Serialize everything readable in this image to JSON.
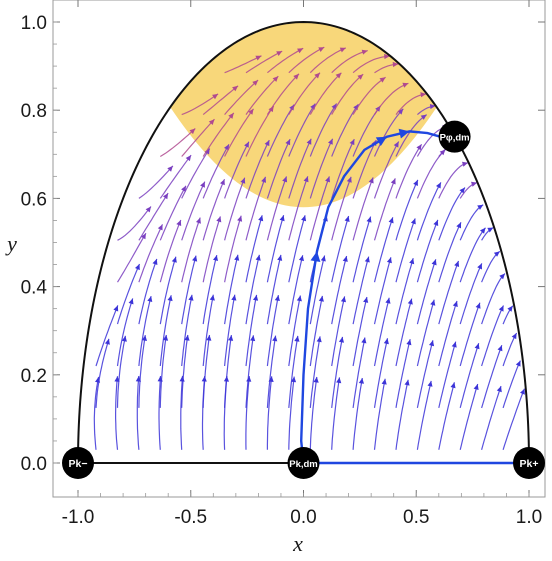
{
  "chart_data": {
    "type": "streamplot",
    "title": "",
    "xlabel": "x",
    "ylabel": "y",
    "xlim": [
      -1.0,
      1.0
    ],
    "ylim": [
      0.0,
      1.0
    ],
    "x_ticks": [
      "-1.0",
      "-0.5",
      "0.0",
      "0.5",
      "1.0"
    ],
    "y_ticks": [
      "0.0",
      "0.2",
      "0.4",
      "0.6",
      "0.8",
      "1.0"
    ],
    "domain_boundary": "x^2 + y^2 = 1, y >= 0",
    "shaded_region": {
      "description": "accelerating region inside the unit semicircle",
      "lower_boundary": "parabola y = 0.58 + 0.65 x^2",
      "color": "#f7d36b"
    },
    "stream_colors": [
      "#3c34d8",
      "#7a3fc0",
      "#b04a8f"
    ],
    "critical_points": [
      {
        "label": "Pk−",
        "x": -1.0,
        "y": 0.0
      },
      {
        "label": "Pk+",
        "x": 1.0,
        "y": 0.0
      },
      {
        "label": "Pk,dm",
        "x": 0.0,
        "y": 0.0
      },
      {
        "label": "Pφ,dm",
        "x": 0.67,
        "y": 0.74
      }
    ],
    "highlighted_trajectory": {
      "color": "#1f47e0",
      "points": [
        [
          0.97,
          0.0
        ],
        [
          0.6,
          0.0
        ],
        [
          0.0,
          0.0
        ],
        [
          -0.01,
          0.05
        ],
        [
          0.0,
          0.2
        ],
        [
          0.02,
          0.35
        ],
        [
          0.06,
          0.48
        ],
        [
          0.11,
          0.58
        ],
        [
          0.18,
          0.65
        ],
        [
          0.27,
          0.71
        ],
        [
          0.37,
          0.74
        ],
        [
          0.47,
          0.752
        ],
        [
          0.55,
          0.748
        ],
        [
          0.62,
          0.738
        ],
        [
          0.67,
          0.74
        ]
      ]
    }
  }
}
